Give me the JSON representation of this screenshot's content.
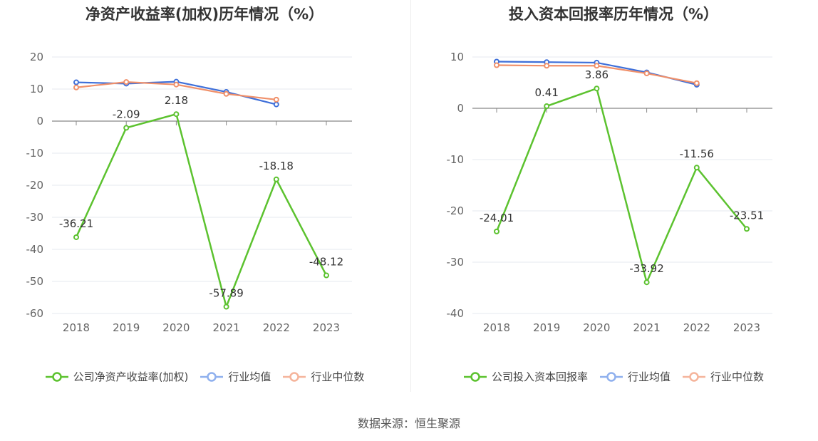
{
  "source": "数据来源：恒生聚源",
  "colors": {
    "company": "#5cc22f",
    "avg": "#3e6fd9",
    "median": "#f0906a",
    "avg_legend": "#8fb0ee",
    "median_legend": "#f5b49b"
  },
  "chart_data": [
    {
      "type": "line",
      "title": "净资产收益率(加权)历年情况（%）",
      "categories": [
        "2018",
        "2019",
        "2020",
        "2021",
        "2022",
        "2023"
      ],
      "ylim": [
        -60,
        20
      ],
      "yticks": [
        20,
        10,
        0,
        -10,
        -20,
        -30,
        -40,
        -50,
        -60
      ],
      "legend_position": "bottom",
      "series": [
        {
          "name": "公司净资产收益率(加权)",
          "values": [
            -36.21,
            -2.09,
            2.18,
            -57.89,
            -18.18,
            -48.12
          ],
          "labels": [
            "-36.21",
            "-2.09",
            "2.18",
            "-57.89",
            "-18.18",
            "-48.12"
          ]
        },
        {
          "name": "行业均值",
          "values": [
            12.1,
            11.7,
            12.3,
            9.1,
            5.2,
            null
          ]
        },
        {
          "name": "行业中位数",
          "values": [
            10.5,
            12.2,
            11.4,
            8.5,
            6.7,
            null
          ]
        }
      ]
    },
    {
      "type": "line",
      "title": "投入资本回报率历年情况（%）",
      "categories": [
        "2018",
        "2019",
        "2020",
        "2021",
        "2022",
        "2023"
      ],
      "ylim": [
        -40,
        10
      ],
      "yticks": [
        10,
        0,
        -10,
        -20,
        -30,
        -40
      ],
      "legend_position": "bottom",
      "series": [
        {
          "name": "公司投入资本回报率",
          "values": [
            -24.01,
            0.41,
            3.86,
            -33.92,
            -11.56,
            -23.51
          ],
          "labels": [
            "-24.01",
            "0.41",
            "3.86",
            "-33.92",
            "-11.56",
            "-23.51"
          ]
        },
        {
          "name": "行业均值",
          "values": [
            9.1,
            9.0,
            8.9,
            7.0,
            4.6,
            null
          ]
        },
        {
          "name": "行业中位数",
          "values": [
            8.4,
            8.3,
            8.3,
            6.8,
            4.9,
            null
          ]
        }
      ]
    }
  ]
}
